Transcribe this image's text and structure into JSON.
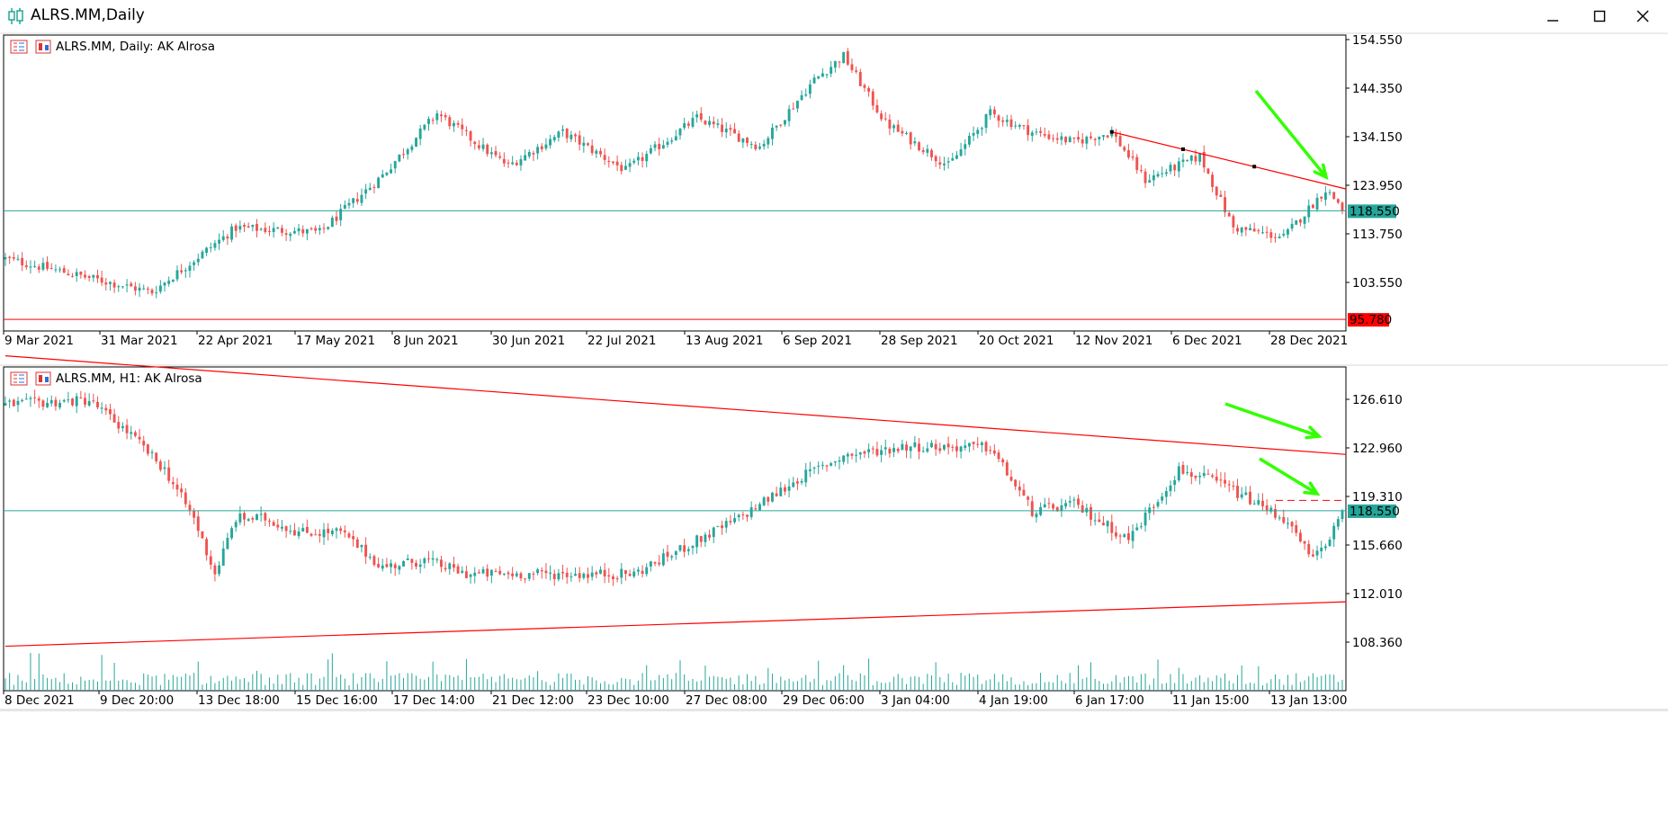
{
  "window": {
    "title": "ALRS.MM,Daily",
    "controls": [
      "minimize",
      "maximize",
      "close"
    ]
  },
  "colors": {
    "bull": "#26a69a",
    "bear": "#ef5350",
    "level": "#26a69a",
    "trendline": "#ff0000",
    "arrow": "#33ff00",
    "volume": "#26a69a",
    "frame": "#000000"
  },
  "chart_data": [
    {
      "type": "candlestick",
      "title": "ALRS.MM, Daily:  AK Alrosa",
      "symbol": "ALRS.MM",
      "timeframe": "Daily",
      "instrument_name": "AK Alrosa",
      "x_tick_labels": [
        "9 Mar 2021",
        "31 Mar 2021",
        "22 Apr 2021",
        "17 May 2021",
        "8 Jun 2021",
        "30 Jun 2021",
        "22 Jul 2021",
        "13 Aug 2021",
        "6 Sep 2021",
        "28 Sep 2021",
        "20 Oct 2021",
        "12 Nov 2021",
        "6 Dec 2021",
        "28 Dec 2021"
      ],
      "y_tick_labels": [
        "154.550",
        "144.350",
        "134.150",
        "123.950",
        "113.750",
        "103.550"
      ],
      "ylim": [
        93.35,
        155.4
      ],
      "current_price": "118.550",
      "horizontal_levels": [
        {
          "price": 118.55,
          "label": "118.550",
          "color": "teal"
        },
        {
          "price": 95.78,
          "label": "95.780",
          "color": "red"
        }
      ],
      "trendline": {
        "from": {
          "bar": 264,
          "price": 135.1
        },
        "to": {
          "bar": 320,
          "price": 123.1
        },
        "anchor_bars": [
          264,
          281,
          298
        ]
      },
      "annotation_arrows": 1,
      "series": [
        {
          "type": "candlestick",
          "bars": 320,
          "anchors": [
            [
              0,
              108.5
            ],
            [
              25,
              103.5
            ],
            [
              35,
              101.5
            ],
            [
              55,
              115
            ],
            [
              75,
              114
            ],
            [
              90,
              126
            ],
            [
              103,
              139
            ],
            [
              115,
              131
            ],
            [
              120,
              128
            ],
            [
              133,
              135
            ],
            [
              148,
              127
            ],
            [
              165,
              138
            ],
            [
              180,
              132
            ],
            [
              193,
              146
            ],
            [
              200,
              151
            ],
            [
              210,
              137
            ],
            [
              225,
              128
            ],
            [
              235,
              139
            ],
            [
              245,
              135
            ],
            [
              255,
              133
            ],
            [
              264,
              135
            ],
            [
              272,
              125
            ],
            [
              285,
              130
            ],
            [
              293,
              115
            ],
            [
              305,
              113
            ],
            [
              315,
              123
            ],
            [
              320,
              118.55
            ]
          ]
        }
      ]
    },
    {
      "type": "candlestick",
      "title": "ALRS.MM, H1:  AK Alrosa",
      "symbol": "ALRS.MM",
      "timeframe": "H1",
      "instrument_name": "AK Alrosa",
      "x_tick_labels": [
        "8 Dec 2021",
        "9 Dec 20:00",
        "13 Dec 18:00",
        "15 Dec 16:00",
        "17 Dec 14:00",
        "21 Dec 12:00",
        "23 Dec 10:00",
        "27 Dec 08:00",
        "29 Dec 06:00",
        "3 Jan 04:00",
        "4 Jan 19:00",
        "6 Jan 17:00",
        "11 Jan 15:00",
        "13 Jan 13:00"
      ],
      "y_tick_labels": [
        "126.610",
        "122.960",
        "119.310",
        "115.660",
        "112.010",
        "108.360"
      ],
      "ylim": [
        105.6,
        128.9
      ],
      "current_price": "118.550",
      "horizontal_levels": [
        {
          "price": 118.55,
          "label": "118.550",
          "color": "teal"
        },
        {
          "price": 119.3,
          "label": "",
          "color": "red-dashed"
        }
      ],
      "trendlines": [
        {
          "from": {
            "bar": 0,
            "price": 129.7
          },
          "to": {
            "bar": 320,
            "price": 122.6
          }
        },
        {
          "from": {
            "bar": 0,
            "price": 108.8
          },
          "to": {
            "bar": 320,
            "price": 112.0
          }
        }
      ],
      "annotation_arrows": 2,
      "series": [
        {
          "type": "candlestick",
          "bars": 320,
          "anchors": [
            [
              0,
              126.2
            ],
            [
              20,
              126.5
            ],
            [
              30,
              124
            ],
            [
              38,
              121.5
            ],
            [
              45,
              118
            ],
            [
              50,
              114
            ],
            [
              55,
              118
            ],
            [
              62,
              118
            ],
            [
              70,
              117
            ],
            [
              80,
              117
            ],
            [
              90,
              114.5
            ],
            [
              100,
              115
            ],
            [
              110,
              114
            ],
            [
              130,
              114
            ],
            [
              150,
              114
            ],
            [
              175,
              118
            ],
            [
              190,
              121
            ],
            [
              200,
              122.5
            ],
            [
              215,
              123.2
            ],
            [
              235,
              123.1
            ],
            [
              245,
              118.5
            ],
            [
              255,
              119
            ],
            [
              268,
              116.5
            ],
            [
              280,
              121.5
            ],
            [
              290,
              120.5
            ],
            [
              305,
              118
            ],
            [
              312,
              115
            ],
            [
              320,
              118.55
            ]
          ]
        },
        {
          "type": "volume",
          "name": "",
          "bars": 320
        }
      ]
    }
  ]
}
